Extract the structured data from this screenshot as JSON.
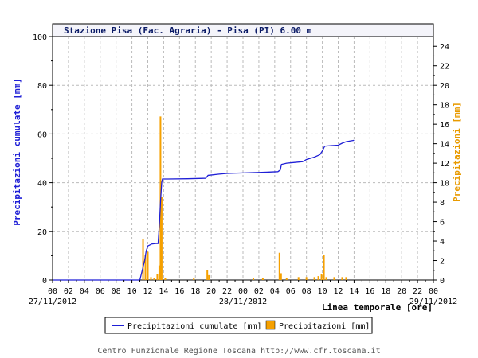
{
  "colors": {
    "cumulative": "#1f1fd6",
    "precipitation": "#f5a000",
    "left_axis_label": "#1f1fd6",
    "right_axis_label": "#e89a00",
    "title_text": "#0a1a66",
    "grid": "#bbbbbb"
  },
  "chart_data": {
    "type": "line",
    "title": "Stazione Pisa (Fac. Agraria) - Pisa (PI) 6.00 m",
    "xlabel": "Linea temporale [ore]",
    "ylabel_left": "Precipitazioni cumulate [mm]",
    "ylabel_right": "Precipitazioni [mm]",
    "x_range_hours": [
      0,
      48
    ],
    "ylim_left": [
      0,
      100
    ],
    "ylim_right": [
      0,
      25
    ],
    "grid": true,
    "legend_position": "bottom-center",
    "x_tick_labels": [
      "00",
      "02",
      "04",
      "06",
      "08",
      "10",
      "12",
      "14",
      "16",
      "18",
      "20",
      "22",
      "00",
      "02",
      "04",
      "06",
      "08",
      "10",
      "12",
      "14",
      "16",
      "18",
      "20",
      "22",
      "00"
    ],
    "y_left_tick_labels": [
      "0",
      "20",
      "40",
      "60",
      "80",
      "100"
    ],
    "y_right_tick_labels": [
      "0",
      "2",
      "4",
      "6",
      "8",
      "10",
      "12",
      "14",
      "16",
      "18",
      "20",
      "22",
      "24"
    ],
    "date_labels": [
      {
        "text": "27/11/2012",
        "hour": 0
      },
      {
        "text": "28/11/2012",
        "hour": 24
      },
      {
        "text": "29/11/2012",
        "hour": 48
      }
    ],
    "series": [
      {
        "name": "Precipitazioni cumulate [mm]",
        "type": "line",
        "axis": "left",
        "points": [
          [
            0,
            0
          ],
          [
            11.0,
            0
          ],
          [
            11.3,
            4
          ],
          [
            11.6,
            8
          ],
          [
            11.8,
            12
          ],
          [
            12.0,
            14
          ],
          [
            12.5,
            14.8
          ],
          [
            13.0,
            15
          ],
          [
            13.3,
            15
          ],
          [
            13.5,
            25
          ],
          [
            13.6,
            32
          ],
          [
            13.75,
            40
          ],
          [
            13.85,
            41.5
          ],
          [
            14.5,
            41.5
          ],
          [
            17.0,
            41.6
          ],
          [
            19.3,
            41.8
          ],
          [
            19.6,
            43
          ],
          [
            21.0,
            43.5
          ],
          [
            22.0,
            43.8
          ],
          [
            24.0,
            44
          ],
          [
            26.0,
            44.2
          ],
          [
            27.0,
            44.3
          ],
          [
            28.4,
            44.5
          ],
          [
            28.7,
            45.2
          ],
          [
            28.85,
            47.5
          ],
          [
            29.5,
            48
          ],
          [
            30.5,
            48.3
          ],
          [
            31.5,
            48.6
          ],
          [
            32.0,
            49.5
          ],
          [
            33.0,
            50.5
          ],
          [
            33.7,
            51.5
          ],
          [
            34.0,
            53
          ],
          [
            34.3,
            55
          ],
          [
            35.0,
            55.2
          ],
          [
            36.0,
            55.4
          ],
          [
            36.5,
            56.2
          ],
          [
            37.0,
            56.8
          ],
          [
            37.5,
            57.1
          ],
          [
            38.0,
            57.4
          ]
        ]
      },
      {
        "name": "Precipitazioni [mm]",
        "type": "bar",
        "axis": "right",
        "points": [
          [
            11.4,
            4.2
          ],
          [
            11.7,
            2.6
          ],
          [
            12.0,
            2.9
          ],
          [
            12.4,
            0.3
          ],
          [
            12.8,
            0.2
          ],
          [
            13.2,
            0.6
          ],
          [
            13.45,
            1.5
          ],
          [
            13.6,
            16.8
          ],
          [
            13.75,
            8.5
          ],
          [
            14.2,
            0.2
          ],
          [
            17.8,
            0.2
          ],
          [
            19.5,
            1.0
          ],
          [
            19.7,
            0.5
          ],
          [
            25.3,
            0.2
          ],
          [
            26.5,
            0.2
          ],
          [
            28.6,
            2.8
          ],
          [
            28.8,
            0.7
          ],
          [
            29.5,
            0.2
          ],
          [
            31.0,
            0.3
          ],
          [
            32.0,
            0.3
          ],
          [
            33.0,
            0.3
          ],
          [
            33.5,
            0.4
          ],
          [
            33.9,
            0.6
          ],
          [
            34.2,
            2.6
          ],
          [
            34.5,
            0.3
          ],
          [
            35.5,
            0.3
          ],
          [
            36.5,
            0.3
          ],
          [
            37.0,
            0.3
          ]
        ]
      }
    ],
    "legend": [
      {
        "label": "Precipitazioni cumulate [mm]",
        "kind": "line"
      },
      {
        "label": "Precipitazioni [mm]",
        "kind": "bar"
      }
    ]
  },
  "footer": "Centro Funzionale Regione Toscana http://www.cfr.toscana.it"
}
